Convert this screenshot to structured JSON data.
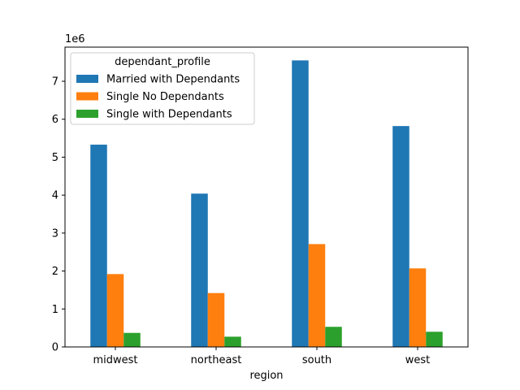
{
  "chart_data": {
    "type": "bar",
    "xlabel": "region",
    "ylabel": "",
    "y_scale_label": "1e6",
    "categories": [
      "midwest",
      "northeast",
      "south",
      "west"
    ],
    "ylim": [
      0,
      7.9
    ],
    "yticks": [
      0,
      1,
      2,
      3,
      4,
      5,
      6,
      7
    ],
    "grid": false,
    "legend": {
      "title": "dependant_profile",
      "placement": "top-left"
    },
    "series": [
      {
        "name": "Married with Dependants",
        "color": "#1f77b4",
        "values": [
          5.33,
          4.04,
          7.55,
          5.82
        ]
      },
      {
        "name": "Single No Dependants",
        "color": "#ff7f0e",
        "values": [
          1.92,
          1.42,
          2.71,
          2.07
        ]
      },
      {
        "name": "Single with Dependants",
        "color": "#2ca02c",
        "values": [
          0.37,
          0.27,
          0.53,
          0.4
        ]
      }
    ]
  }
}
